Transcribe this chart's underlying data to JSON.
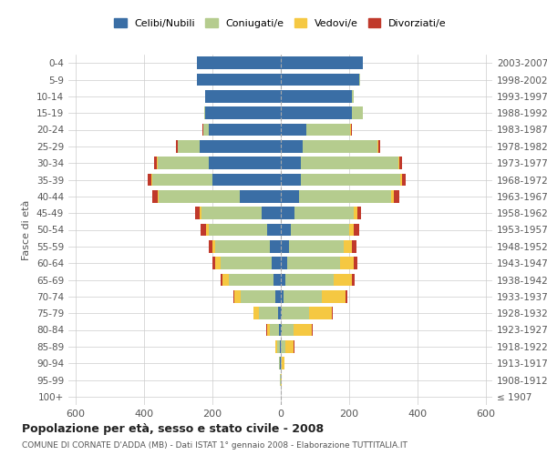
{
  "age_groups": [
    "100+",
    "95-99",
    "90-94",
    "85-89",
    "80-84",
    "75-79",
    "70-74",
    "65-69",
    "60-64",
    "55-59",
    "50-54",
    "45-49",
    "40-44",
    "35-39",
    "30-34",
    "25-29",
    "20-24",
    "15-19",
    "10-14",
    "5-9",
    "0-4"
  ],
  "birth_years": [
    "≤ 1907",
    "1908-1912",
    "1913-1917",
    "1918-1922",
    "1923-1927",
    "1928-1932",
    "1933-1937",
    "1938-1942",
    "1943-1947",
    "1948-1952",
    "1953-1957",
    "1958-1962",
    "1963-1967",
    "1968-1972",
    "1973-1977",
    "1978-1982",
    "1983-1987",
    "1988-1992",
    "1993-1997",
    "1998-2002",
    "2003-2007"
  ],
  "males": {
    "celibe": [
      0,
      0,
      1,
      2,
      5,
      8,
      15,
      20,
      25,
      30,
      40,
      55,
      120,
      200,
      210,
      235,
      210,
      220,
      220,
      245,
      245
    ],
    "coniugato": [
      0,
      1,
      3,
      8,
      25,
      55,
      100,
      130,
      150,
      160,
      170,
      175,
      235,
      175,
      150,
      65,
      15,
      3,
      1,
      0,
      0
    ],
    "vedovo": [
      0,
      0,
      1,
      5,
      10,
      15,
      20,
      20,
      15,
      10,
      8,
      5,
      5,
      3,
      2,
      1,
      1,
      0,
      0,
      0,
      0
    ],
    "divorziato": [
      0,
      0,
      0,
      0,
      1,
      2,
      3,
      5,
      8,
      10,
      15,
      15,
      15,
      10,
      8,
      5,
      2,
      1,
      0,
      0,
      0
    ]
  },
  "females": {
    "nubile": [
      0,
      0,
      1,
      2,
      3,
      5,
      10,
      15,
      20,
      25,
      30,
      40,
      55,
      60,
      60,
      65,
      75,
      210,
      210,
      230,
      240
    ],
    "coniugata": [
      0,
      1,
      4,
      12,
      35,
      80,
      110,
      140,
      155,
      160,
      170,
      175,
      270,
      290,
      285,
      220,
      130,
      30,
      5,
      2,
      1
    ],
    "vedova": [
      1,
      3,
      8,
      25,
      55,
      65,
      70,
      55,
      40,
      25,
      15,
      10,
      8,
      5,
      3,
      2,
      1,
      1,
      0,
      0,
      0
    ],
    "divorziata": [
      0,
      0,
      0,
      1,
      2,
      3,
      5,
      8,
      10,
      12,
      15,
      12,
      15,
      12,
      8,
      5,
      3,
      1,
      0,
      0,
      0
    ]
  },
  "colors": {
    "celibe": "#3a6ea5",
    "coniugato": "#b5cc8e",
    "vedovo": "#f5c842",
    "divorziato": "#c0392b"
  },
  "title": "Popolazione per età, sesso e stato civile - 2008",
  "subtitle": "COMUNE DI CORNATE D'ADDA (MB) - Dati ISTAT 1° gennaio 2008 - Elaborazione TUTTITALIA.IT",
  "ylabel_left": "Fasce di età",
  "xlim": 620,
  "legend_labels": [
    "Celibi/Nubili",
    "Coniugati/e",
    "Vedovi/e",
    "Divorziati/e"
  ],
  "background_color": "#ffffff",
  "grid_color": "#cccccc"
}
